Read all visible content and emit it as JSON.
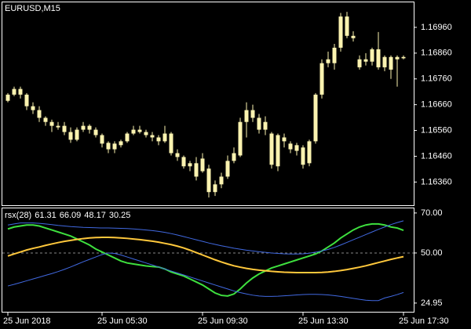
{
  "chart_data": [
    {
      "type": "candlestick",
      "title": "EURUSD,M15",
      "categories": [
        "25 Jun 2018",
        null,
        null,
        null,
        null,
        null,
        null,
        null,
        null,
        null,
        null,
        null,
        null,
        null,
        null,
        "25 Jun 05:30",
        null,
        null,
        null,
        null,
        null,
        null,
        null,
        null,
        null,
        null,
        null,
        null,
        null,
        null,
        null,
        "25 Jun 09:30",
        null,
        null,
        null,
        null,
        null,
        null,
        null,
        null,
        null,
        null,
        null,
        null,
        null,
        null,
        null,
        "25 Jun 13:30",
        null,
        null,
        null,
        null,
        null,
        null,
        null,
        null,
        null,
        null,
        null,
        null,
        null,
        null,
        null,
        "25 Jun 17:30"
      ],
      "open": [
        1.16675,
        1.16699,
        1.16721,
        1.16699,
        1.16654,
        1.16639,
        1.16609,
        1.16593,
        1.16572,
        1.16578,
        1.16554,
        1.16524,
        1.16563,
        1.16578,
        1.16563,
        1.16542,
        1.16512,
        1.16487,
        1.16503,
        1.16518,
        1.16548,
        1.16563,
        1.16554,
        1.16542,
        1.16533,
        1.16518,
        1.16548,
        1.16472,
        1.16457,
        1.16421,
        1.16433,
        1.16402,
        1.16412,
        1.16321,
        1.16351,
        1.16381,
        1.16442,
        1.16463,
        1.16593,
        1.16639,
        1.16609,
        1.16563,
        1.16548,
        1.16421,
        1.16533,
        1.16509,
        1.16503,
        1.16494,
        1.16433,
        1.16518,
        1.16699,
        1.16821,
        1.16821,
        1.16881,
        1.17002,
        1.16927,
        1.16805,
        1.16836,
        1.16827,
        1.16875,
        1.16805,
        1.16845,
        1.16836,
        1.1684
      ],
      "high": [
        1.16705,
        1.1673,
        1.1673,
        1.16705,
        1.16669,
        1.16654,
        1.16615,
        1.16602,
        1.16593,
        1.16593,
        1.16572,
        1.16572,
        1.16593,
        1.16584,
        1.16572,
        1.16548,
        1.16518,
        1.16518,
        1.16524,
        1.16554,
        1.16578,
        1.16578,
        1.16563,
        1.16554,
        1.16542,
        1.16578,
        1.16554,
        1.16487,
        1.16463,
        1.16442,
        1.16457,
        1.16472,
        1.16427,
        1.16366,
        1.16396,
        1.16463,
        1.16494,
        1.16609,
        1.16669,
        1.1666,
        1.16624,
        1.16615,
        1.16554,
        1.16548,
        1.16548,
        1.16518,
        1.16512,
        1.16503,
        1.16524,
        1.16705,
        1.16836,
        1.16866,
        1.16896,
        1.17016,
        1.1702,
        1.16945,
        1.16851,
        1.1686,
        1.16881,
        1.16942,
        1.16851,
        1.16851,
        1.16851,
        1.16851
      ],
      "low": [
        1.16669,
        1.16693,
        1.16684,
        1.16639,
        1.16624,
        1.16593,
        1.16578,
        1.16554,
        1.16563,
        1.16542,
        1.16512,
        1.16518,
        1.16554,
        1.16548,
        1.16533,
        1.16494,
        1.16472,
        1.16472,
        1.16494,
        1.16512,
        1.16542,
        1.16548,
        1.16533,
        1.16518,
        1.16503,
        1.16512,
        1.16463,
        1.16442,
        1.16412,
        1.16402,
        1.16366,
        1.16396,
        1.163,
        1.16306,
        1.16336,
        1.16372,
        1.16433,
        1.16457,
        1.16533,
        1.16593,
        1.16548,
        1.16542,
        1.16412,
        1.16402,
        1.16494,
        1.16472,
        1.16463,
        1.16412,
        1.16421,
        1.16509,
        1.16684,
        1.16805,
        1.16796,
        1.16866,
        1.16918,
        1.16905,
        1.16796,
        1.16812,
        1.16812,
        1.16796,
        1.1679,
        1.1676,
        1.1673,
        1.16836
      ],
      "close": [
        1.16699,
        1.16721,
        1.16699,
        1.16654,
        1.16639,
        1.16609,
        1.16593,
        1.16578,
        1.16578,
        1.16554,
        1.16524,
        1.16563,
        1.16578,
        1.16563,
        1.16542,
        1.16509,
        1.16487,
        1.16509,
        1.16518,
        1.16548,
        1.16563,
        1.16554,
        1.16542,
        1.16533,
        1.16518,
        1.16548,
        1.16472,
        1.16457,
        1.16421,
        1.16433,
        1.16381,
        1.16451,
        1.16321,
        1.16351,
        1.16381,
        1.16442,
        1.16472,
        1.16593,
        1.16639,
        1.16609,
        1.16563,
        1.16593,
        1.16427,
        1.16542,
        1.16518,
        1.16487,
        1.16481,
        1.16427,
        1.16518,
        1.16699,
        1.16821,
        1.16836,
        1.16881,
        1.17002,
        1.16927,
        1.16918,
        1.16836,
        1.16827,
        1.16875,
        1.16805,
        1.16845,
        1.16796,
        1.16845,
        1.16845
      ],
      "color": "#fbf3b0",
      "ylim": [
        1.1627,
        1.1706
      ],
      "yticks": [
        {
          "value": 1.1696,
          "label": "1.16960"
        },
        {
          "value": 1.1686,
          "label": "1.16860"
        },
        {
          "value": 1.1676,
          "label": "1.16760"
        },
        {
          "value": 1.1666,
          "label": "1.16660"
        },
        {
          "value": 1.1656,
          "label": "1.16560"
        },
        {
          "value": 1.1646,
          "label": "1.16460"
        },
        {
          "value": 1.1636,
          "label": "1.16360"
        }
      ]
    },
    {
      "type": "line",
      "title": "rsx(28)",
      "series": [
        {
          "color": "#3ee03e",
          "values": [
            62,
            63,
            63.5,
            64,
            64,
            63.5,
            62.5,
            61.5,
            60.5,
            59.5,
            58.5,
            57,
            55.5,
            54,
            52,
            50.5,
            49,
            47.5,
            46,
            45,
            44.5,
            44,
            43.5,
            43.2,
            43,
            42,
            40.5,
            39.5,
            38.5,
            37,
            35.5,
            34,
            32,
            30,
            28.8,
            28.5,
            29.5,
            32,
            35,
            37.5,
            39.5,
            41,
            42.5,
            43.5,
            44.5,
            45.5,
            46.5,
            47.5,
            48.5,
            49.5,
            51,
            53,
            55,
            57.5,
            59.5,
            61.5,
            63,
            64,
            64.5,
            64.5,
            64,
            63,
            62.5,
            61.31
          ]
        },
        {
          "color": "#4169e1",
          "values": [
            64,
            64.5,
            65,
            65,
            65,
            64.8,
            64.5,
            64.2,
            63.8,
            63.5,
            63.2,
            63,
            62.8,
            62.7,
            62.6,
            62.5,
            62.5,
            62.4,
            62.3,
            62.2,
            62,
            61.8,
            61.5,
            61.2,
            60.8,
            60.3,
            59.7,
            59,
            58.2,
            57.4,
            56.6,
            55.8,
            55,
            54.3,
            53.6,
            53,
            52.4,
            51.9,
            51.4,
            51,
            50.6,
            50.3,
            50,
            49.8,
            49.6,
            49.5,
            49.5,
            49.6,
            49.9,
            50.4,
            51,
            51.8,
            52.8,
            54,
            55.3,
            56.6,
            57.9,
            59.2,
            60.5,
            61.8,
            63,
            64.2,
            65.2,
            66.09
          ]
        },
        {
          "color": "#ffc83c",
          "values": [
            48.5,
            49.5,
            50.5,
            51.5,
            52.3,
            53,
            53.8,
            54.5,
            55.2,
            55.8,
            56.3,
            56.8,
            57.2,
            57.5,
            57.7,
            57.8,
            57.8,
            57.7,
            57.5,
            57.3,
            57,
            56.7,
            56.3,
            55.9,
            55.4,
            54.8,
            54.2,
            53.4,
            52.5,
            51.4,
            50.2,
            49,
            47.8,
            46.6,
            45.5,
            44.5,
            43.6,
            42.9,
            42.3,
            41.8,
            41.4,
            41.1,
            40.8,
            40.6,
            40.4,
            40.3,
            40.2,
            40.2,
            40.2,
            40.2,
            40.3,
            40.5,
            40.8,
            41.2,
            41.7,
            42.3,
            42.9,
            43.6,
            44.4,
            45.2,
            46,
            46.8,
            47.5,
            48.17
          ]
        },
        {
          "color": "#4169e1",
          "values": [
            33.5,
            34.3,
            35.2,
            36.1,
            37,
            37.9,
            38.8,
            39.7,
            40.7,
            41.8,
            43,
            44.3,
            45.6,
            46.8,
            48,
            49.2,
            50,
            49.8,
            49,
            48,
            47,
            46,
            45,
            44,
            43,
            42,
            41,
            40,
            39,
            38,
            37,
            36,
            35,
            34,
            33,
            32,
            31,
            30.2,
            29.5,
            28.9,
            28.5,
            28.3,
            28.3,
            28.4,
            28.6,
            28.8,
            29,
            29.2,
            29.3,
            29.3,
            29.2,
            29,
            28.7,
            28.3,
            27.8,
            27.3,
            26.8,
            26.4,
            26.2,
            26.2,
            27.5,
            28.3,
            29.2,
            30.25
          ]
        }
      ],
      "ylim": [
        20.6,
        72.7
      ],
      "yticks": [
        {
          "value": 70,
          "label": "70.00"
        },
        {
          "value": 50,
          "label": "50.00"
        },
        24.95
      ],
      "levels": [
        50
      ]
    }
  ]
}
